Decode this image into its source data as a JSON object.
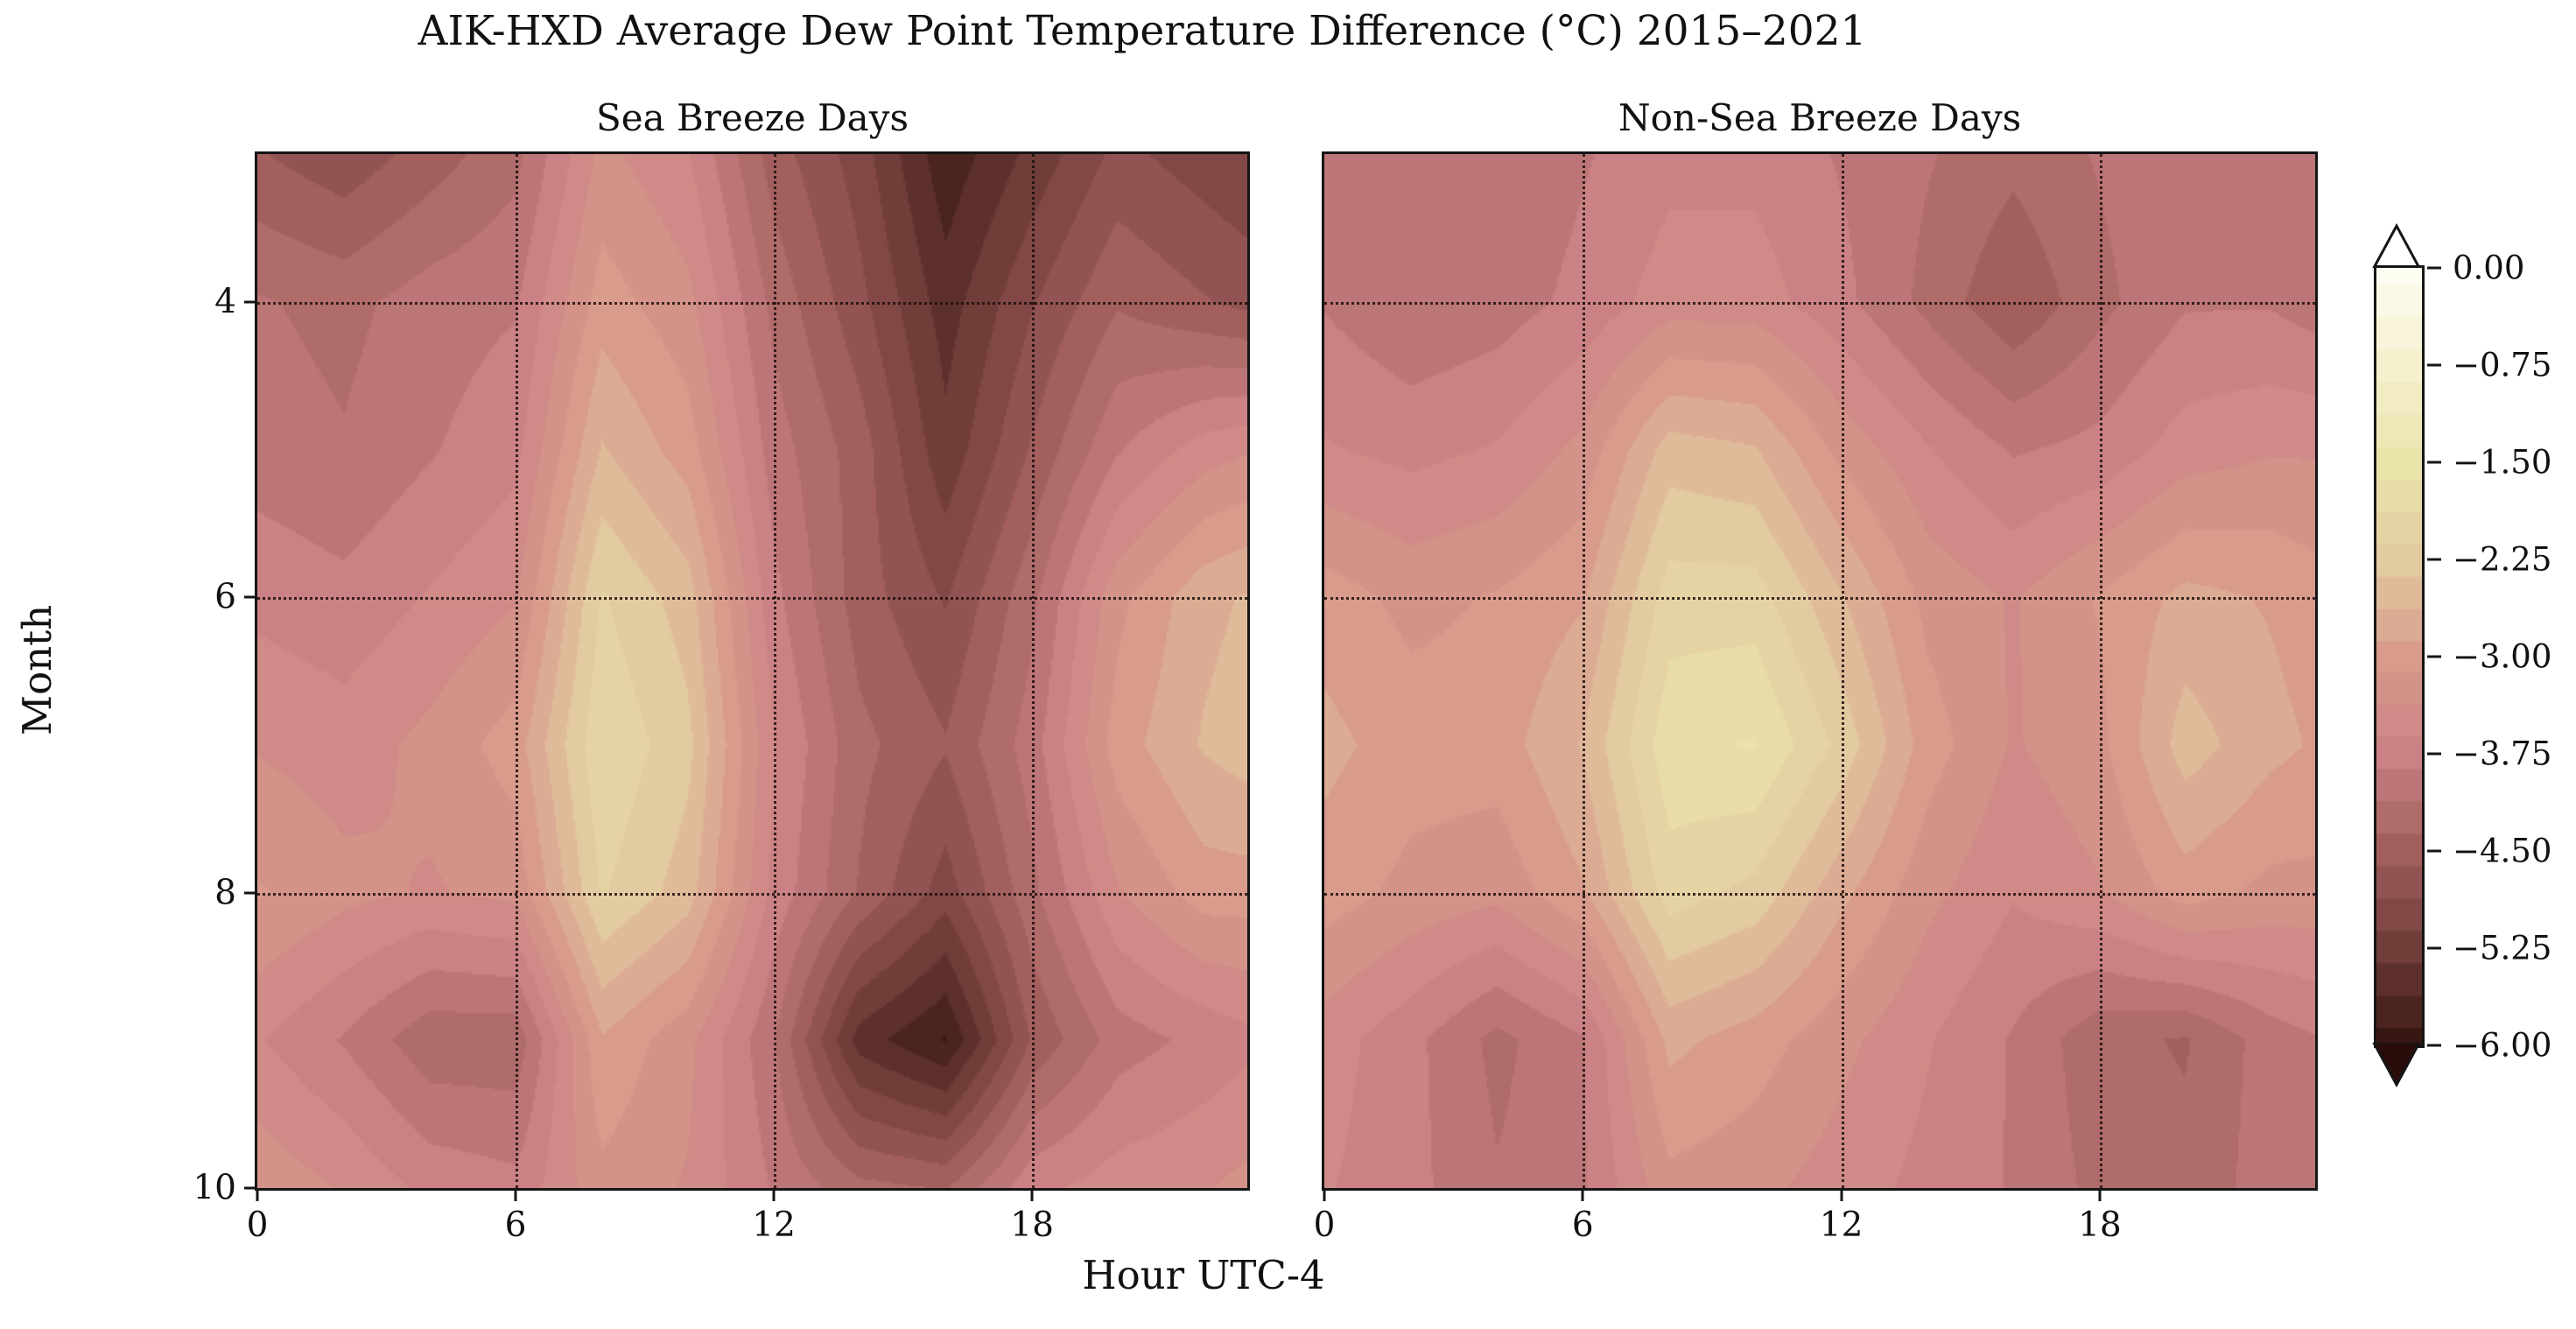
{
  "chart_data": {
    "type": "heatmap",
    "title": "AIK-HXD Average Dew Point Temperature Difference (°C) 2015–2021",
    "xlabel": "Hour UTC-4",
    "ylabel": "Month",
    "axes": {
      "x_ticks": [
        0,
        6,
        12,
        18
      ],
      "y_ticks": [
        4,
        6,
        8,
        10
      ],
      "x_range": [
        0,
        23
      ],
      "y_range": [
        3,
        10
      ],
      "y_direction": "increasing-downward",
      "grid": "dotted"
    },
    "hours": [
      0,
      2,
      4,
      6,
      8,
      10,
      12,
      14,
      16,
      18,
      20,
      22,
      23
    ],
    "months": [
      3,
      4,
      5,
      6,
      7,
      8,
      9,
      10
    ],
    "contour_interval": 0.25,
    "panels": [
      {
        "title": "Sea Breeze Days",
        "values": [
          [
            -4.6,
            -4.8,
            -4.5,
            -4.2,
            -3.3,
            -3.6,
            -4.5,
            -5.0,
            -5.8,
            -5.3,
            -4.8,
            -5.0,
            -5.1
          ],
          [
            -4.1,
            -4.2,
            -4.0,
            -3.9,
            -3.0,
            -3.3,
            -4.2,
            -4.8,
            -5.5,
            -4.9,
            -4.4,
            -4.6,
            -4.7
          ],
          [
            -4.0,
            -4.1,
            -3.9,
            -3.7,
            -2.6,
            -3.0,
            -4.0,
            -4.5,
            -5.3,
            -4.6,
            -3.9,
            -3.5,
            -3.4
          ],
          [
            -3.7,
            -3.8,
            -3.6,
            -3.4,
            -2.1,
            -2.5,
            -3.8,
            -4.5,
            -4.9,
            -4.2,
            -3.2,
            -2.7,
            -2.6
          ],
          [
            -3.4,
            -3.5,
            -3.3,
            -3.0,
            -1.9,
            -2.3,
            -3.6,
            -4.3,
            -4.6,
            -4.0,
            -3.0,
            -2.6,
            -2.5
          ],
          [
            -3.1,
            -3.3,
            -3.4,
            -3.3,
            -2.1,
            -2.5,
            -3.7,
            -4.4,
            -5.0,
            -4.2,
            -3.4,
            -3.0,
            -3.0
          ],
          [
            -3.6,
            -3.9,
            -4.3,
            -4.3,
            -2.9,
            -3.3,
            -4.1,
            -5.5,
            -5.9,
            -4.6,
            -4.0,
            -3.8,
            -3.7
          ],
          [
            -3.2,
            -3.4,
            -3.7,
            -3.8,
            -3.2,
            -3.4,
            -3.9,
            -4.3,
            -4.4,
            -3.7,
            -3.5,
            -3.4,
            -3.3
          ]
        ]
      },
      {
        "title": "Non-Sea Breeze Days",
        "values": [
          [
            -3.9,
            -4.0,
            -4.1,
            -3.9,
            -3.7,
            -3.7,
            -3.9,
            -4.1,
            -4.3,
            -4.1,
            -3.9,
            -3.9,
            -3.9
          ],
          [
            -3.9,
            -4.1,
            -4.0,
            -3.8,
            -3.5,
            -3.5,
            -3.8,
            -4.2,
            -4.6,
            -4.2,
            -3.9,
            -3.9,
            -4.0
          ],
          [
            -3.6,
            -3.7,
            -3.6,
            -3.3,
            -2.5,
            -2.6,
            -3.2,
            -3.6,
            -3.9,
            -3.8,
            -3.5,
            -3.4,
            -3.4
          ],
          [
            -3.0,
            -3.2,
            -3.1,
            -2.9,
            -2.0,
            -2.0,
            -2.6,
            -3.2,
            -3.4,
            -3.1,
            -2.8,
            -2.9,
            -3.0
          ],
          [
            -2.8,
            -3.0,
            -3.0,
            -2.6,
            -1.7,
            -1.6,
            -2.2,
            -3.0,
            -3.4,
            -3.2,
            -2.5,
            -2.8,
            -2.9
          ],
          [
            -3.0,
            -3.2,
            -3.3,
            -2.9,
            -2.0,
            -2.2,
            -2.8,
            -3.3,
            -3.6,
            -3.4,
            -3.0,
            -3.2,
            -3.2
          ],
          [
            -3.5,
            -3.8,
            -4.2,
            -3.9,
            -2.8,
            -3.0,
            -3.3,
            -3.6,
            -3.9,
            -4.3,
            -4.4,
            -4.0,
            -3.9
          ],
          [
            -3.6,
            -3.8,
            -4.1,
            -3.9,
            -3.2,
            -3.3,
            -3.5,
            -3.7,
            -3.9,
            -4.2,
            -4.3,
            -4.0,
            -3.9
          ]
        ]
      }
    ],
    "colormap": {
      "min": -6.0,
      "max": 0.0,
      "stops": [
        {
          "value": 0.0,
          "color": "#fefdf1"
        },
        {
          "value": -0.75,
          "color": "#f5f0cd"
        },
        {
          "value": -1.5,
          "color": "#eae4ab"
        },
        {
          "value": -2.25,
          "color": "#e3cba1"
        },
        {
          "value": -3.0,
          "color": "#d99b8c"
        },
        {
          "value": -3.75,
          "color": "#cb8284"
        },
        {
          "value": -4.5,
          "color": "#a25f5e"
        },
        {
          "value": -5.25,
          "color": "#703d39"
        },
        {
          "value": -6.0,
          "color": "#381713"
        }
      ],
      "over_color": "#ffffff",
      "under_color": "#2a0d0a"
    },
    "colorbar": {
      "extend": "both",
      "values": [
        0,
        -0.75,
        -1.5,
        -2.25,
        -3.0,
        -3.75,
        -4.5,
        -5.25,
        -6.0
      ],
      "labels": [
        "0.00",
        "−0.75",
        "−1.50",
        "−2.25",
        "−3.00",
        "−3.75",
        "−4.50",
        "−5.25",
        "−6.00"
      ]
    },
    "layout": {
      "background": "#ffffff",
      "legend_position": "right-colorbar"
    }
  }
}
